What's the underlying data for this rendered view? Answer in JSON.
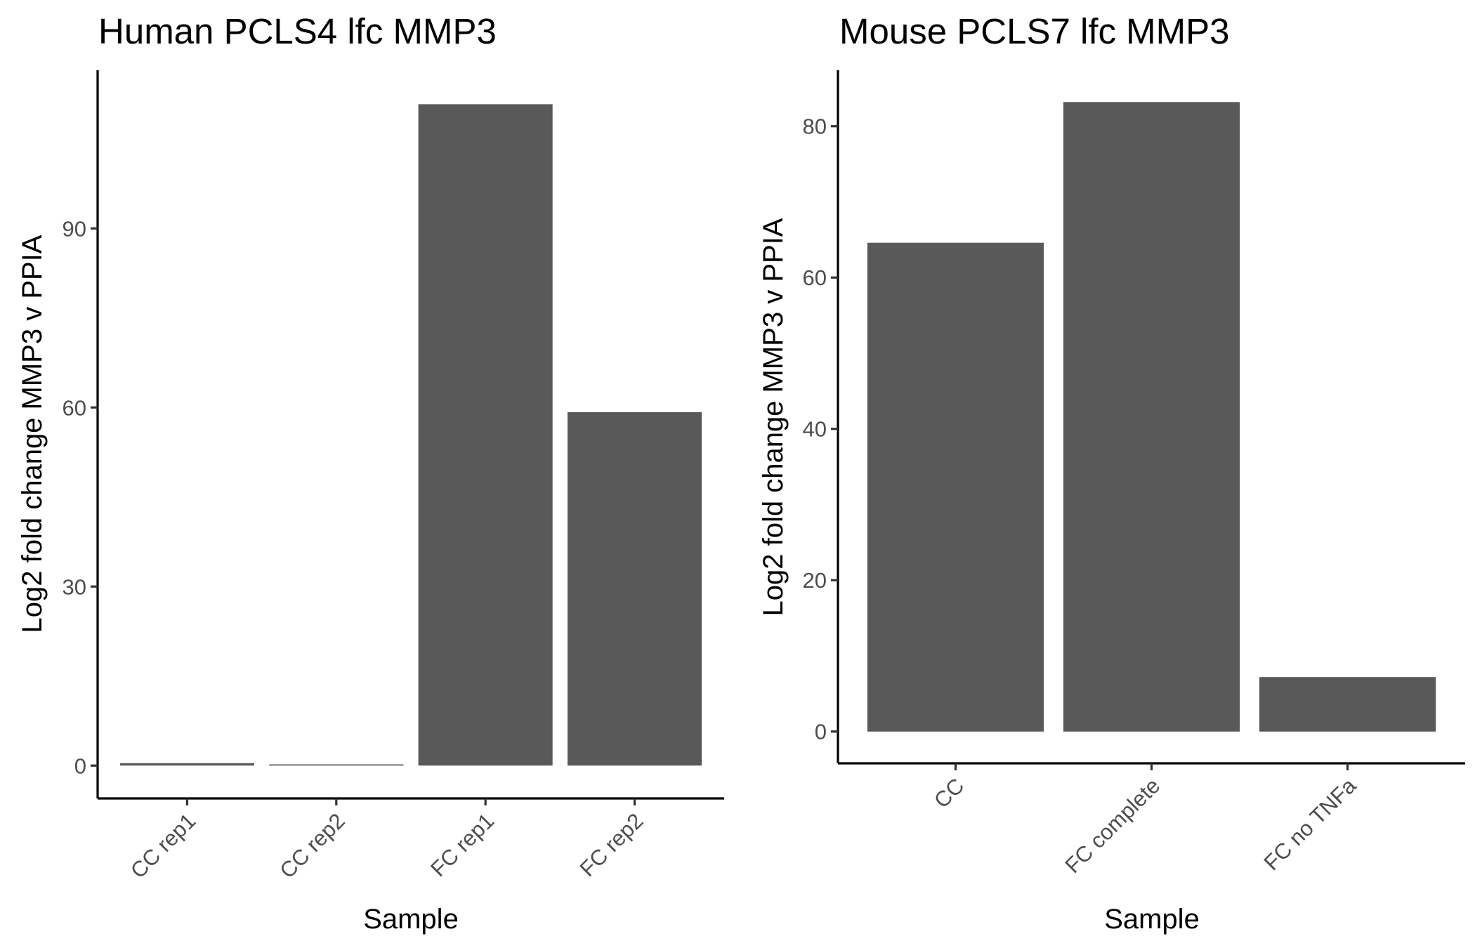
{
  "chart_data": [
    {
      "type": "bar",
      "title": "Human PCLS4 lfc MMP3",
      "xlabel": "Sample",
      "ylabel": "Log2 fold change MMP3 v PPIA",
      "categories": [
        "CC rep1",
        "CC rep2",
        "FC rep1",
        "FC rep2"
      ],
      "values": [
        0.4,
        0.2,
        110.8,
        59.2
      ],
      "yticks": [
        0,
        30,
        60,
        90
      ],
      "ylim": [
        -5.5,
        116.5
      ],
      "bar_color": "#595959",
      "grid": false,
      "legend": "none"
    },
    {
      "type": "bar",
      "title": "Mouse PCLS7 lfc MMP3",
      "xlabel": "Sample",
      "ylabel": "Log2 fold change MMP3 v PPIA",
      "categories": [
        "CC",
        "FC complete",
        "FC no TNFa"
      ],
      "values": [
        64.6,
        83.2,
        7.2
      ],
      "yticks": [
        0,
        20,
        40,
        60,
        80
      ],
      "ylim": [
        -4.2,
        87.4
      ],
      "bar_color": "#595959",
      "grid": false,
      "legend": "none"
    }
  ]
}
